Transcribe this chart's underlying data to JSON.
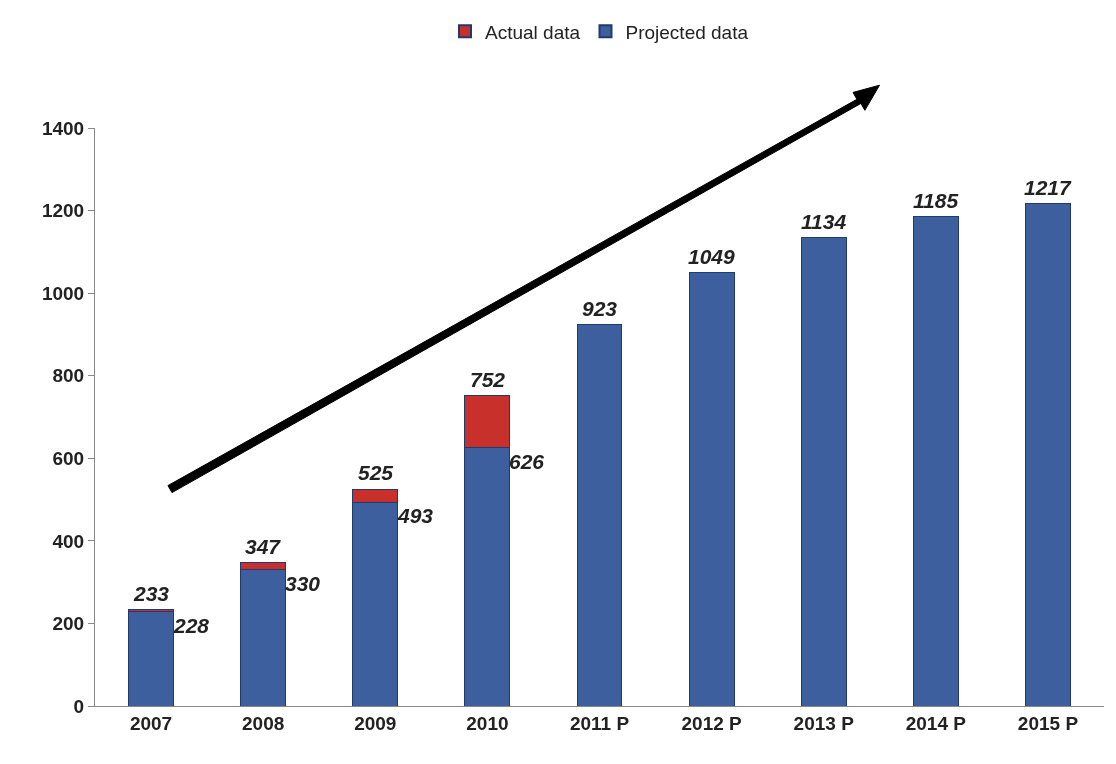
{
  "chart_data": {
    "type": "bar",
    "stacked": true,
    "categories": [
      "2007",
      "2008",
      "2009",
      "2010",
      "2011 P",
      "2012 P",
      "2013 P",
      "2014 P",
      "2015 P"
    ],
    "series": [
      {
        "name": "Projected data",
        "color": "#3d5f9e",
        "values": [
          228,
          330,
          493,
          626,
          923,
          1049,
          1134,
          1185,
          1217
        ],
        "value_labels": [
          "228",
          "330",
          "493",
          "626",
          "923",
          "1049",
          "1134",
          "1185",
          "1217"
        ]
      },
      {
        "name": "Actual data",
        "color": "#c8302c",
        "values": [
          5,
          17,
          32,
          126,
          null,
          null,
          null,
          null,
          null
        ]
      }
    ],
    "totals": [
      "233",
      "347",
      "525",
      "752",
      null,
      null,
      null,
      null,
      null
    ],
    "ylim": [
      0,
      1400
    ],
    "yticks": [
      0,
      200,
      400,
      600,
      800,
      1000,
      1200,
      1400
    ],
    "grid": false,
    "legend": "top"
  }
}
